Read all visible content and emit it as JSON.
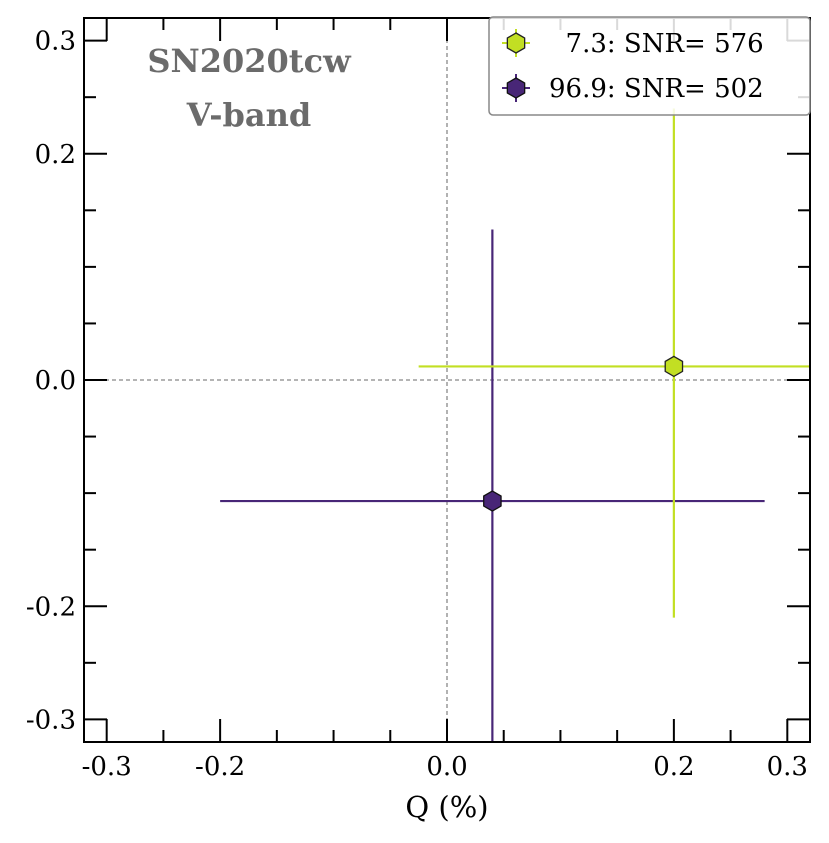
{
  "chart_data": {
    "type": "scatter",
    "xlabel": "Q (%)",
    "ylabel": "",
    "xlim": [
      -0.32,
      0.32
    ],
    "ylim": [
      -0.32,
      0.32
    ],
    "xticks": [
      -0.3,
      -0.2,
      0.0,
      0.2,
      0.3
    ],
    "xtick_labels": [
      "-0.3",
      "-0.2",
      "0.0",
      "0.2",
      "0.3"
    ],
    "yticks": [
      0.3,
      0.2,
      0.0,
      -0.2,
      -0.3
    ],
    "ytick_labels": [
      "0.3",
      "0.2",
      "0.0",
      "-0.2",
      "-0.3"
    ],
    "minor_step": 0.05,
    "grid": false,
    "reference_lines": {
      "x": 0.0,
      "y": 0.0
    },
    "annotations": [
      "SN2020tcw",
      "V-band"
    ],
    "legend_position": "top-right",
    "series": [
      {
        "name": "7.3: SNR= 576",
        "legend_label": "  7.3: SNR= 576",
        "x": 0.2,
        "y": 0.012,
        "xerr_low": 0.225,
        "xerr_high": 0.13,
        "yerr_low": 0.222,
        "yerr_high": 0.228,
        "color": "#c2df23",
        "edge": "#222222"
      },
      {
        "name": "96.9: SNR= 502",
        "legend_label": "96.9: SNR= 502",
        "x": 0.04,
        "y": -0.107,
        "xerr_low": 0.24,
        "xerr_high": 0.24,
        "yerr_low": 0.24,
        "yerr_high": 0.24,
        "color": "#482677",
        "edge": "#111111"
      }
    ]
  }
}
